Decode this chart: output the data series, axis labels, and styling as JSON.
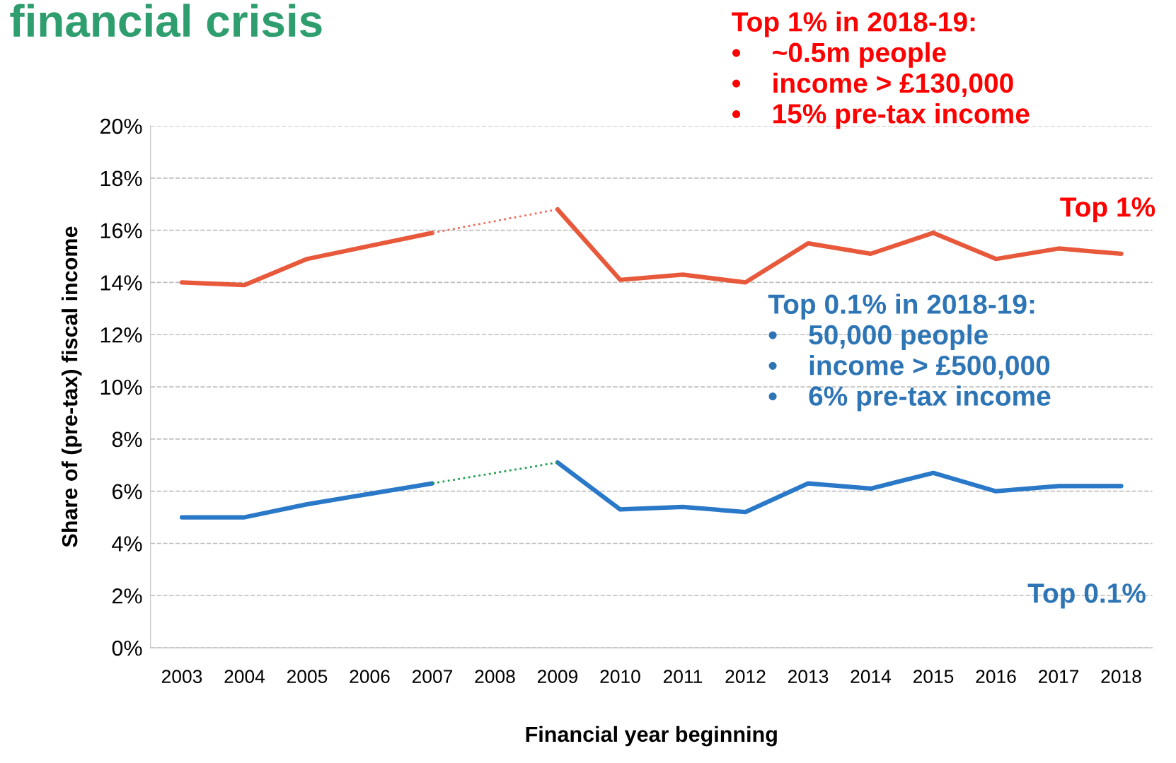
{
  "chart_data": {
    "type": "line",
    "title": "financial crisis",
    "xlabel": "Financial year beginning",
    "ylabel": "Share of (pre-tax) fiscal income",
    "categories": [
      "2003",
      "2004",
      "2005",
      "2006",
      "2007",
      "2008",
      "2009",
      "2010",
      "2011",
      "2012",
      "2013",
      "2014",
      "2015",
      "2016",
      "2017",
      "2018"
    ],
    "series": [
      {
        "name": "Top 1%",
        "color": "#e8593c",
        "line_style": "solid",
        "values": [
          14.0,
          13.9,
          14.9,
          15.4,
          15.9,
          null,
          16.8,
          14.1,
          14.3,
          14.0,
          15.5,
          15.1,
          15.9,
          14.9,
          15.3,
          15.1
        ]
      },
      {
        "name": "Top 0.1%",
        "color": "#2a78c8",
        "line_style": "solid",
        "values": [
          5.0,
          5.0,
          5.5,
          5.9,
          6.3,
          null,
          7.1,
          5.3,
          5.4,
          5.2,
          6.3,
          6.1,
          6.7,
          6.0,
          6.2,
          6.2
        ]
      },
      {
        "color": "#f06a5a",
        "line_style": "dotted",
        "values": [
          null,
          null,
          null,
          null,
          15.9,
          null,
          16.8,
          null,
          null,
          null,
          null,
          null,
          null,
          null,
          null,
          null
        ]
      },
      {
        "color": "#1e9e50",
        "line_style": "dotted",
        "values": [
          null,
          null,
          null,
          null,
          6.3,
          null,
          7.1,
          null,
          null,
          null,
          null,
          null,
          null,
          null,
          null,
          null
        ]
      }
    ],
    "ylim": [
      0,
      20
    ],
    "yticks": [
      {
        "value": 0,
        "label": "0%"
      },
      {
        "value": 2,
        "label": "2%"
      },
      {
        "value": 4,
        "label": "4%"
      },
      {
        "value": 6,
        "label": "6%"
      },
      {
        "value": 8,
        "label": "8%"
      },
      {
        "value": 10,
        "label": "10%"
      },
      {
        "value": 12,
        "label": "12%"
      },
      {
        "value": 14,
        "label": "14%"
      },
      {
        "value": 16,
        "label": "16%"
      },
      {
        "value": 18,
        "label": "18%"
      },
      {
        "value": 20,
        "label": "20%"
      }
    ],
    "grid": "y",
    "legend": false,
    "marker": "none",
    "annotations": [
      "Top 1% in 2018-19:\n•    ~0.5m people\n•    income > £130,000\n•    15% pre-tax income",
      "Top 0.1% in 2018-19:\n•    50,000 people\n•    income > £500,000\n•    6% pre-tax income"
    ]
  }
}
